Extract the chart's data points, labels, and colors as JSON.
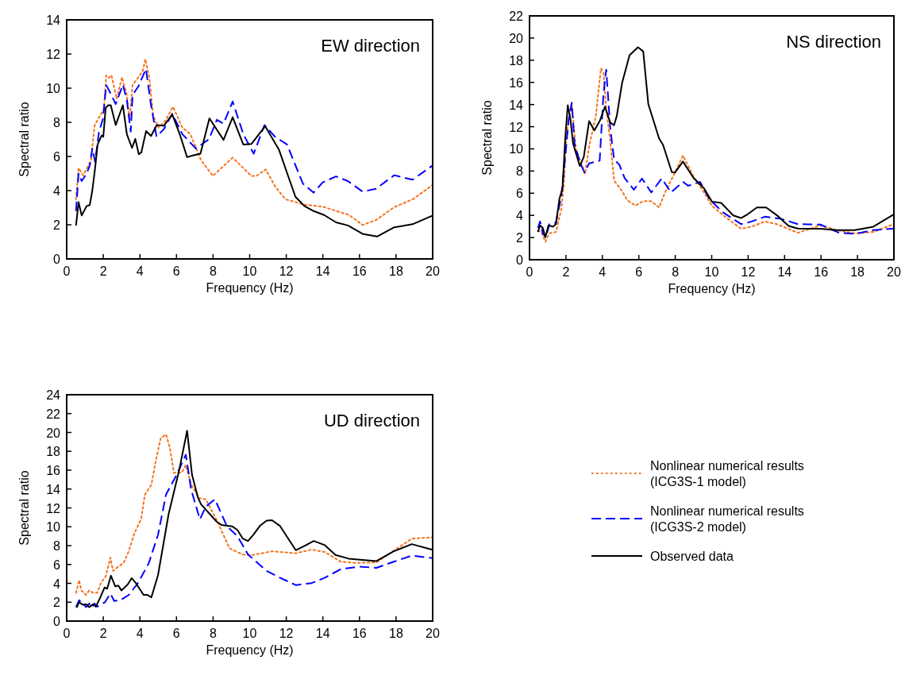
{
  "chart_data": [
    {
      "type": "line",
      "title": "EW direction",
      "xlabel": "Frequency (Hz)",
      "ylabel": "Spectral ratio",
      "xlim": [
        0,
        20
      ],
      "xticks": [
        0,
        2,
        4,
        6,
        8,
        10,
        12,
        14,
        16,
        18,
        20
      ],
      "ylim": [
        0,
        14
      ],
      "yticks": [
        0,
        2,
        4,
        6,
        8,
        10,
        12,
        14
      ],
      "grid": false,
      "legend": false,
      "series": [
        {
          "color": "#f4731f",
          "line_style": "dotted",
          "x": [
            0.51,
            0.65,
            0.9,
            1.11,
            1.33,
            1.52,
            1.77,
            2.03,
            2.16,
            2.3,
            2.45,
            2.73,
            3.02,
            3.29,
            3.43,
            3.6,
            3.86,
            4.15,
            4.3,
            4.51,
            4.73,
            5.02,
            5.38,
            5.81,
            6.32,
            6.76,
            7.34,
            7.99,
            9.07,
            10.09,
            10.37,
            10.88,
            11.38,
            11.96,
            12.99,
            13.99,
            15.44,
            16.17,
            16.89,
            17.9,
            18.9,
            20
          ],
          "values": [
            3.49,
            5.32,
            4.9,
            5.32,
            5.78,
            7.8,
            8.3,
            8.76,
            10.75,
            10.6,
            10.75,
            9.37,
            10.64,
            9.6,
            8.1,
            10.2,
            10.55,
            10.98,
            11.7,
            10.67,
            8.37,
            7.69,
            8.07,
            8.91,
            7.69,
            7.31,
            5.78,
            4.86,
            5.93,
            4.86,
            4.86,
            5.24,
            4.26,
            3.49,
            3.18,
            3.06,
            2.57,
            1.99,
            2.27,
            3.03,
            3.49,
            4.33
          ]
        },
        {
          "color": "#0000ff",
          "line_style": "dashed",
          "x": [
            0.51,
            0.65,
            0.82,
            1.09,
            1.26,
            1.4,
            1.55,
            1.77,
            1.98,
            2.16,
            2.3,
            2.68,
            3.07,
            3.29,
            3.5,
            3.6,
            3.94,
            4.33,
            4.59,
            4.91,
            5.31,
            5.77,
            6.32,
            7.05,
            7.77,
            8.21,
            8.57,
            9.07,
            9.65,
            10.22,
            10.81,
            11.38,
            12.04,
            12.91,
            13.49,
            13.99,
            14.72,
            15.37,
            16.17,
            16.89,
            17.9,
            18.9,
            20
          ],
          "values": [
            2.8,
            5.0,
            4.56,
            5.0,
            5.47,
            6.47,
            5.7,
            7.46,
            8.2,
            10.18,
            9.9,
            9.07,
            10.2,
            9.3,
            7.46,
            9.6,
            10.14,
            11.13,
            9.14,
            7.16,
            7.6,
            8.5,
            7.31,
            6.47,
            7.0,
            8.15,
            7.92,
            9.22,
            7.31,
            6.16,
            7.84,
            7.16,
            6.7,
            4.41,
            3.88,
            4.48,
            4.83,
            4.56,
            3.94,
            4.1,
            4.9,
            4.64,
            5.47
          ]
        },
        {
          "color": "#000000",
          "line_style": "solid",
          "x": [
            0.51,
            0.65,
            0.82,
            1.09,
            1.26,
            1.4,
            1.55,
            1.69,
            1.91,
            2.0,
            2.13,
            2.27,
            2.41,
            2.68,
            3.07,
            3.29,
            3.57,
            3.75,
            3.94,
            4.08,
            4.34,
            4.61,
            4.92,
            5.31,
            5.77,
            6.18,
            6.58,
            6.9,
            7.31,
            7.8,
            8.57,
            9.07,
            9.65,
            10.09,
            10.85,
            11.6,
            12.1,
            12.5,
            12.99,
            13.5,
            14.07,
            14.72,
            15.37,
            16.17,
            16.96,
            17.9,
            18.9,
            20
          ],
          "values": [
            1.96,
            3.33,
            2.54,
            3.1,
            3.15,
            4.0,
            5.3,
            6.7,
            7.23,
            7.15,
            8.84,
            9.0,
            9.0,
            7.84,
            9.0,
            7.3,
            6.5,
            7.03,
            6.13,
            6.24,
            7.49,
            7.2,
            7.84,
            7.8,
            8.46,
            7.3,
            5.96,
            6.06,
            6.16,
            8.23,
            6.97,
            8.3,
            6.7,
            6.73,
            7.77,
            6.4,
            4.86,
            3.64,
            3.1,
            2.8,
            2.57,
            2.14,
            1.96,
            1.47,
            1.31,
            1.85,
            2.03,
            2.54
          ]
        }
      ]
    },
    {
      "type": "line",
      "title": "NS direction",
      "xlabel": "Frequency (Hz)",
      "ylabel": "Spectral ratio",
      "xlim": [
        0,
        20
      ],
      "xticks": [
        0,
        2,
        4,
        6,
        8,
        10,
        12,
        14,
        16,
        18,
        20
      ],
      "ylim": [
        0,
        22
      ],
      "yticks": [
        0,
        2,
        4,
        6,
        8,
        10,
        12,
        14,
        16,
        18,
        20,
        22
      ],
      "grid": false,
      "legend": false,
      "series": [
        {
          "color": "#f4731f",
          "line_style": "dotted",
          "x": [
            0.46,
            0.65,
            0.87,
            1.09,
            1.45,
            1.74,
            1.89,
            2.03,
            2.32,
            2.54,
            3.05,
            3.27,
            3.63,
            3.92,
            4.06,
            4.21,
            4.43,
            4.64,
            5.08,
            5.37,
            5.81,
            6.24,
            6.68,
            7.11,
            7.47,
            7.98,
            8.42,
            9.0,
            9.58,
            10.01,
            10.6,
            11.61,
            12.19,
            12.92,
            13.57,
            14.73,
            15.97,
            16.84,
            17.85,
            18.87,
            20
          ],
          "values": [
            2.62,
            2.5,
            1.62,
            2.38,
            2.5,
            4.52,
            6.9,
            11.43,
            14.05,
            10.0,
            7.74,
            10.24,
            12.86,
            17.26,
            16.9,
            13.69,
            10.71,
            7.14,
            6.19,
            5.36,
            4.88,
            5.29,
            5.29,
            4.71,
            6.19,
            7.86,
            9.4,
            7.5,
            6.07,
            4.88,
            4.05,
            2.79,
            2.98,
            3.45,
            3.21,
            2.43,
            3.1,
            2.67,
            2.38,
            2.5,
            3.21
          ]
        },
        {
          "color": "#0000ff",
          "line_style": "dashed",
          "x": [
            0.46,
            0.58,
            0.73,
            0.9,
            1.09,
            1.45,
            1.74,
            1.96,
            2.15,
            2.32,
            2.47,
            2.76,
            3.02,
            3.27,
            3.85,
            4.06,
            4.21,
            4.43,
            4.64,
            4.93,
            5.22,
            5.73,
            6.17,
            6.68,
            7.26,
            7.76,
            8.42,
            8.71,
            9.36,
            9.87,
            10.6,
            11.61,
            12.19,
            12.92,
            13.79,
            14.73,
            15.97,
            16.99,
            17.85,
            18.87,
            20
          ],
          "values": [
            2.86,
            3.45,
            2.38,
            2.02,
            3.21,
            3.33,
            5.71,
            9.29,
            12.62,
            14.17,
            10.48,
            8.81,
            7.86,
            8.69,
            8.93,
            15.0,
            17.14,
            11.9,
            9.05,
            8.57,
            7.38,
            6.31,
            7.33,
            6.07,
            7.33,
            6.07,
            7.02,
            6.67,
            7.02,
            5.48,
            4.29,
            3.21,
            3.45,
            3.88,
            3.69,
            3.21,
            3.17,
            2.43,
            2.33,
            2.67,
            2.81
          ]
        },
        {
          "color": "#000000",
          "line_style": "solid",
          "x": [
            0.46,
            0.58,
            0.73,
            0.87,
            1.04,
            1.28,
            1.45,
            1.64,
            1.81,
            1.96,
            2.1,
            2.25,
            2.39,
            2.76,
            2.98,
            3.27,
            3.56,
            3.85,
            4.14,
            4.43,
            4.64,
            4.79,
            5.08,
            5.49,
            5.95,
            6.24,
            6.52,
            7.11,
            7.33,
            7.81,
            7.98,
            8.42,
            9.0,
            9.58,
            10.01,
            10.52,
            11.18,
            11.61,
            11.97,
            12.48,
            12.99,
            13.64,
            14.22,
            14.73,
            15.97,
            16.84,
            17.85,
            18.87,
            20
          ],
          "values": [
            2.5,
            3.1,
            2.86,
            2.02,
            3.1,
            2.98,
            3.21,
            5.48,
            6.43,
            10.95,
            13.93,
            12.62,
            10.48,
            8.45,
            9.29,
            12.5,
            11.67,
            12.5,
            13.81,
            12.38,
            12.14,
            12.98,
            15.95,
            18.45,
            19.17,
            18.8,
            14.05,
            10.95,
            10.36,
            7.9,
            7.86,
            8.86,
            7.38,
            6.43,
            5.24,
            5.12,
            4.0,
            3.76,
            4.1,
            4.71,
            4.71,
            3.93,
            3.05,
            2.81,
            2.79,
            2.67,
            2.67,
            2.98,
            4.1
          ]
        }
      ]
    },
    {
      "type": "line",
      "title": "UD direction",
      "xlabel": "Frequency (Hz)",
      "ylabel": "Spectral ratio",
      "xlim": [
        0,
        20
      ],
      "xticks": [
        0,
        2,
        4,
        6,
        8,
        10,
        12,
        14,
        16,
        18,
        20
      ],
      "ylim": [
        0,
        24
      ],
      "yticks": [
        0,
        2,
        4,
        6,
        8,
        10,
        12,
        14,
        16,
        18,
        20,
        22,
        24
      ],
      "grid": false,
      "legend": "right",
      "series": [
        {
          "name": "Nonlinear numerical results\n(ICG3S-1 model)",
          "color": "#f4731f",
          "line_style": "dotted",
          "x": [
            0.51,
            0.68,
            0.8,
            1.06,
            1.23,
            1.45,
            1.66,
            1.88,
            2.13,
            2.39,
            2.53,
            2.82,
            3.11,
            3.4,
            3.69,
            4.07,
            4.27,
            4.63,
            4.85,
            5.14,
            5.43,
            5.64,
            5.86,
            6.3,
            6.51,
            6.8,
            7.24,
            7.6,
            8.18,
            8.9,
            9.62,
            10.2,
            11.22,
            12.52,
            13.39,
            14.11,
            14.98,
            15.85,
            16.93,
            17.87,
            18.86,
            20
          ],
          "values": [
            2.99,
            4.34,
            3.25,
            2.78,
            3.25,
            2.99,
            2.99,
            4.08,
            4.73,
            6.73,
            5.32,
            5.77,
            6.16,
            7.45,
            9.27,
            10.83,
            13.38,
            14.47,
            16.81,
            19.4,
            19.79,
            18.36,
            15.71,
            15.77,
            16.55,
            14.47,
            13.04,
            12.91,
            10.78,
            7.71,
            7.06,
            7.01,
            7.4,
            7.19,
            7.58,
            7.32,
            6.29,
            6.16,
            6.23,
            7.45,
            8.75,
            8.88
          ]
        },
        {
          "name": "Nonlinear numerical results\n(ICG3S-2 model)",
          "color": "#0000ff",
          "line_style": "dashed",
          "x": [
            0.51,
            0.68,
            0.87,
            1.06,
            1.23,
            1.37,
            1.52,
            1.66,
            1.88,
            2.09,
            2.39,
            2.6,
            2.97,
            3.4,
            3.91,
            4.49,
            4.99,
            5.43,
            6.01,
            6.51,
            6.8,
            7.28,
            7.6,
            8.1,
            8.76,
            9.33,
            9.91,
            10.93,
            11.65,
            12.52,
            13.39,
            14.11,
            14.98,
            15.99,
            16.93,
            17.87,
            18.86,
            20
          ],
          "values": [
            1.48,
            2.21,
            1.87,
            1.48,
            1.87,
            1.43,
            1.87,
            1.53,
            1.79,
            2.0,
            2.91,
            2.13,
            2.26,
            2.78,
            4.08,
            6.16,
            9.14,
            13.43,
            15.51,
            17.64,
            13.95,
            10.78,
            12.13,
            12.91,
            10.05,
            9.01,
            7.06,
            5.32,
            4.6,
            3.82,
            4.03,
            4.6,
            5.51,
            5.77,
            5.64,
            6.29,
            6.94,
            6.68
          ]
        },
        {
          "name": "Observed data",
          "color": "#000000",
          "line_style": "solid",
          "x": [
            0.54,
            0.68,
            0.87,
            1.06,
            1.23,
            1.45,
            1.59,
            1.81,
            2.07,
            2.21,
            2.42,
            2.65,
            2.82,
            2.99,
            3.33,
            3.55,
            3.76,
            4.2,
            4.41,
            4.63,
            4.99,
            5.57,
            6.15,
            6.58,
            6.85,
            7.16,
            7.34,
            8.18,
            8.47,
            9.04,
            9.33,
            9.62,
            9.91,
            10.2,
            10.56,
            10.93,
            11.22,
            11.65,
            12.52,
            13.1,
            13.5,
            14.11,
            14.69,
            15.41,
            16.93,
            17.87,
            18.86,
            20
          ],
          "values": [
            1.43,
            2.0,
            1.74,
            1.79,
            1.48,
            1.79,
            1.53,
            2.39,
            3.56,
            3.43,
            4.81,
            3.69,
            3.77,
            3.25,
            3.87,
            4.55,
            4.08,
            2.78,
            2.78,
            2.52,
            4.86,
            11.35,
            16.03,
            20.18,
            15.51,
            13.17,
            12.39,
            10.57,
            10.18,
            10.05,
            9.66,
            8.75,
            8.49,
            9.14,
            10.1,
            10.65,
            10.7,
            10.1,
            7.51,
            8.08,
            8.49,
            8.05,
            7.01,
            6.62,
            6.36,
            7.4,
            8.16,
            7.56
          ]
        }
      ]
    }
  ]
}
